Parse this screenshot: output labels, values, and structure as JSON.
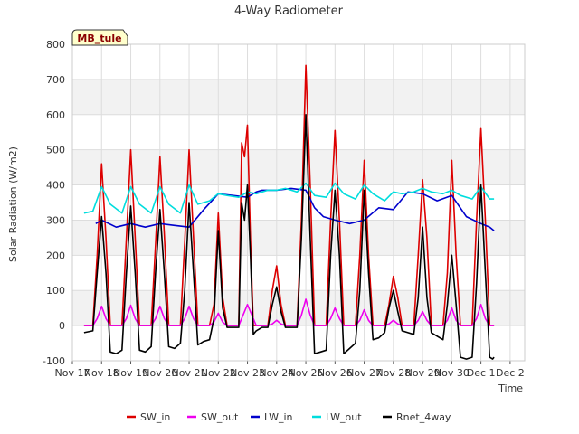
{
  "chart_data": {
    "type": "line",
    "title": "4-Way Radiometer",
    "xlabel": "Time",
    "ylabel": "Solar Radiation (W/m2)",
    "badge": "MB_tule",
    "xlim": [
      0,
      15.5
    ],
    "ylim": [
      -100,
      800
    ],
    "x_ticks": [
      {
        "x": 0,
        "label": "Nov 17"
      },
      {
        "x": 1,
        "label": "Nov 18"
      },
      {
        "x": 2,
        "label": "Nov 19"
      },
      {
        "x": 3,
        "label": "Nov 20"
      },
      {
        "x": 4,
        "label": "Nov 21"
      },
      {
        "x": 5,
        "label": "Nov 22"
      },
      {
        "x": 6,
        "label": "Nov 23"
      },
      {
        "x": 7,
        "label": "Nov 24"
      },
      {
        "x": 8,
        "label": "Nov 25"
      },
      {
        "x": 9,
        "label": "Nov 26"
      },
      {
        "x": 10,
        "label": "Nov 27"
      },
      {
        "x": 11,
        "label": "Nov 28"
      },
      {
        "x": 12,
        "label": "Nov 29"
      },
      {
        "x": 13,
        "label": "Nov 30"
      },
      {
        "x": 14,
        "label": "Dec 1"
      },
      {
        "x": 15,
        "label": "Dec 2"
      }
    ],
    "y_ticks": [
      -100,
      0,
      100,
      200,
      300,
      400,
      500,
      600,
      700,
      800
    ],
    "legend_position": "bottom",
    "grid": true,
    "series": [
      {
        "name": "SW_in",
        "color": "#dd0000",
        "x": [
          0.4,
          0.7,
          0.85,
          1.0,
          1.15,
          1.3,
          1.7,
          1.85,
          2.0,
          2.15,
          2.3,
          2.7,
          2.85,
          3.0,
          3.15,
          3.3,
          3.7,
          3.85,
          4.0,
          4.15,
          4.3,
          4.7,
          4.85,
          5.0,
          5.15,
          5.3,
          5.7,
          5.8,
          5.9,
          6.0,
          6.1,
          6.2,
          6.3,
          6.7,
          6.85,
          7.0,
          7.15,
          7.3,
          7.7,
          7.85,
          8.0,
          8.15,
          8.3,
          8.7,
          8.85,
          9.0,
          9.15,
          9.3,
          9.7,
          9.85,
          10.0,
          10.15,
          10.3,
          10.7,
          10.85,
          11.0,
          11.15,
          11.3,
          11.7,
          11.85,
          12.0,
          12.15,
          12.3,
          12.7,
          12.85,
          13.0,
          13.15,
          13.3,
          13.7,
          13.85,
          14.0,
          14.15,
          14.3,
          14.4,
          14.45
        ],
        "y": [
          0,
          0,
          200,
          460,
          250,
          0,
          0,
          250,
          500,
          250,
          0,
          0,
          230,
          480,
          260,
          0,
          0,
          240,
          500,
          250,
          0,
          0,
          60,
          320,
          80,
          0,
          0,
          520,
          480,
          570,
          250,
          0,
          0,
          0,
          100,
          170,
          60,
          0,
          0,
          300,
          740,
          400,
          0,
          0,
          300,
          555,
          300,
          0,
          0,
          200,
          470,
          200,
          0,
          0,
          60,
          140,
          80,
          0,
          0,
          200,
          415,
          250,
          0,
          0,
          150,
          470,
          200,
          0,
          0,
          300,
          560,
          300,
          0,
          0,
          0
        ]
      },
      {
        "name": "SW_out",
        "color": "#ee00ee",
        "x": [
          0.4,
          0.7,
          0.85,
          1.0,
          1.15,
          1.3,
          1.7,
          1.85,
          2.0,
          2.15,
          2.3,
          2.7,
          2.85,
          3.0,
          3.15,
          3.3,
          3.7,
          3.85,
          4.0,
          4.15,
          4.3,
          4.7,
          4.85,
          5.0,
          5.15,
          5.3,
          5.7,
          5.85,
          6.0,
          6.15,
          6.3,
          6.7,
          6.85,
          7.0,
          7.15,
          7.3,
          7.7,
          7.85,
          8.0,
          8.15,
          8.3,
          8.7,
          8.85,
          9.0,
          9.15,
          9.3,
          9.7,
          9.85,
          10.0,
          10.15,
          10.3,
          10.7,
          10.85,
          11.0,
          11.15,
          11.3,
          11.7,
          11.85,
          12.0,
          12.15,
          12.3,
          12.7,
          12.85,
          13.0,
          13.15,
          13.3,
          13.7,
          13.85,
          14.0,
          14.15,
          14.3,
          14.4,
          14.45
        ],
        "y": [
          0,
          0,
          20,
          55,
          20,
          0,
          0,
          20,
          58,
          20,
          0,
          0,
          20,
          55,
          20,
          0,
          0,
          20,
          55,
          20,
          0,
          0,
          10,
          35,
          10,
          0,
          0,
          30,
          60,
          30,
          0,
          0,
          5,
          15,
          5,
          0,
          0,
          30,
          75,
          30,
          0,
          0,
          20,
          50,
          20,
          0,
          0,
          15,
          45,
          15,
          0,
          0,
          5,
          15,
          5,
          0,
          0,
          15,
          40,
          15,
          0,
          0,
          15,
          50,
          15,
          0,
          0,
          20,
          60,
          20,
          0,
          0,
          0
        ]
      },
      {
        "name": "LW_in",
        "color": "#0000cc",
        "x": [
          0.8,
          1.0,
          1.5,
          2.0,
          2.5,
          3.0,
          3.5,
          4.0,
          4.5,
          5.0,
          5.5,
          6.0,
          6.3,
          6.5,
          7.0,
          7.5,
          8.0,
          8.3,
          8.6,
          9.0,
          9.5,
          10.0,
          10.5,
          11.0,
          11.5,
          12.0,
          12.5,
          13.0,
          13.5,
          14.0,
          14.3,
          14.45
        ],
        "y": [
          290,
          300,
          280,
          290,
          280,
          290,
          285,
          280,
          330,
          375,
          370,
          365,
          380,
          385,
          385,
          390,
          385,
          335,
          310,
          300,
          290,
          300,
          335,
          330,
          380,
          375,
          355,
          370,
          310,
          290,
          280,
          270
        ]
      },
      {
        "name": "LW_out",
        "color": "#00dddd",
        "x": [
          0.4,
          0.7,
          1.0,
          1.3,
          1.7,
          2.0,
          2.3,
          2.7,
          3.0,
          3.3,
          3.7,
          4.0,
          4.3,
          4.7,
          5.0,
          5.3,
          5.7,
          6.0,
          6.3,
          6.7,
          7.0,
          7.3,
          7.7,
          8.0,
          8.3,
          8.7,
          9.0,
          9.3,
          9.7,
          10.0,
          10.3,
          10.7,
          11.0,
          11.3,
          11.7,
          12.0,
          12.3,
          12.7,
          13.0,
          13.3,
          13.7,
          14.0,
          14.3,
          14.45
        ],
        "y": [
          320,
          325,
          395,
          345,
          320,
          395,
          345,
          320,
          395,
          345,
          320,
          400,
          345,
          355,
          375,
          370,
          365,
          380,
          375,
          385,
          385,
          390,
          380,
          405,
          370,
          365,
          405,
          375,
          360,
          400,
          375,
          355,
          380,
          375,
          380,
          390,
          380,
          375,
          385,
          370,
          360,
          395,
          360,
          360
        ]
      },
      {
        "name": "Rnet_4way",
        "color": "#000000",
        "x": [
          0.4,
          0.7,
          0.85,
          1.0,
          1.15,
          1.3,
          1.5,
          1.7,
          1.85,
          2.0,
          2.15,
          2.3,
          2.5,
          2.7,
          2.85,
          3.0,
          3.15,
          3.3,
          3.5,
          3.7,
          3.85,
          4.0,
          4.15,
          4.3,
          4.5,
          4.7,
          4.85,
          5.0,
          5.15,
          5.3,
          5.5,
          5.7,
          5.8,
          5.9,
          6.0,
          6.1,
          6.2,
          6.3,
          6.5,
          6.7,
          6.85,
          7.0,
          7.15,
          7.3,
          7.5,
          7.7,
          7.85,
          8.0,
          8.15,
          8.3,
          8.5,
          8.7,
          8.85,
          9.0,
          9.15,
          9.3,
          9.5,
          9.7,
          9.85,
          10.0,
          10.15,
          10.3,
          10.5,
          10.7,
          10.85,
          11.0,
          11.15,
          11.3,
          11.5,
          11.7,
          11.85,
          12.0,
          12.15,
          12.3,
          12.5,
          12.7,
          12.85,
          13.0,
          13.15,
          13.3,
          13.5,
          13.7,
          13.85,
          14.0,
          14.15,
          14.3,
          14.4,
          14.45
        ],
        "y": [
          -20,
          -15,
          150,
          310,
          150,
          -75,
          -80,
          -70,
          150,
          340,
          150,
          -70,
          -75,
          -60,
          150,
          330,
          150,
          -60,
          -65,
          -50,
          100,
          350,
          150,
          -55,
          -45,
          -40,
          20,
          270,
          50,
          -5,
          -5,
          -5,
          350,
          300,
          400,
          200,
          -25,
          -15,
          -5,
          -5,
          60,
          110,
          40,
          -5,
          -5,
          -5,
          250,
          600,
          250,
          -80,
          -75,
          -70,
          200,
          385,
          200,
          -80,
          -65,
          -50,
          100,
          385,
          150,
          -40,
          -35,
          -20,
          50,
          100,
          40,
          -15,
          -20,
          -25,
          80,
          280,
          80,
          -20,
          -30,
          -40,
          60,
          200,
          60,
          -90,
          -95,
          -90,
          120,
          400,
          150,
          -90,
          -95,
          -90
        ]
      }
    ]
  }
}
